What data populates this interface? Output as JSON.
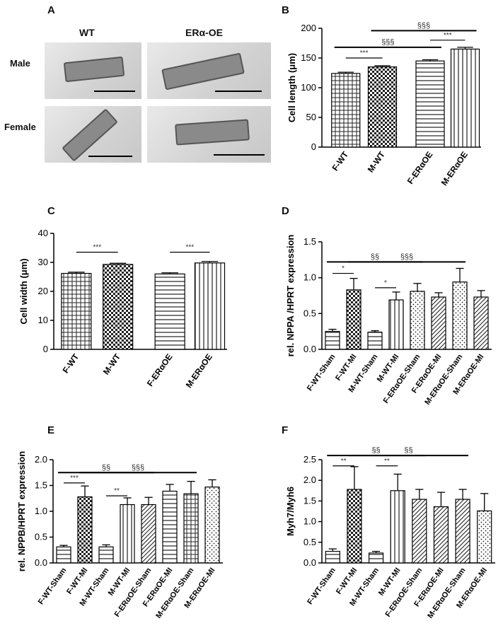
{
  "panelA": {
    "label": "A",
    "columns": [
      "WT",
      "ERα-OE"
    ],
    "rows": [
      "Male",
      "Female"
    ]
  },
  "chart_data": [
    {
      "panel": "B",
      "type": "bar",
      "categories": [
        "F-WT",
        "M-WT",
        "F-ERαOE",
        "M-ERαOE"
      ],
      "values": [
        124,
        135,
        145,
        165
      ],
      "errors": [
        2,
        2,
        2,
        3
      ],
      "patterns": [
        "grid",
        "check",
        "hstripe",
        "vstripe"
      ],
      "ylabel": "Cell length (μm)",
      "ylim": [
        0,
        200
      ],
      "yticks": [
        0,
        50,
        100,
        150,
        200
      ],
      "annotations": [
        {
          "from": 0,
          "to": 1,
          "text": "***",
          "y": 150,
          "style": "thin"
        },
        {
          "from": 0,
          "to": 2,
          "text": "§§§",
          "y": 168,
          "style": "thick"
        },
        {
          "from": 2,
          "to": 3,
          "text": "***",
          "y": 180,
          "style": "thin"
        },
        {
          "from": 1,
          "to": 3,
          "text": "§§§",
          "y": 196,
          "style": "thick"
        }
      ]
    },
    {
      "panel": "C",
      "type": "bar",
      "categories": [
        "F-WT",
        "M-WT",
        "F-ERαOE",
        "M-ERαOE"
      ],
      "values": [
        26.2,
        29.3,
        26.0,
        29.8
      ],
      "errors": [
        0.4,
        0.4,
        0.4,
        0.5
      ],
      "patterns": [
        "grid",
        "check",
        "hstripe",
        "vstripe"
      ],
      "ylabel": "Cell width (μm)",
      "ylim": [
        0,
        40
      ],
      "yticks": [
        0,
        10,
        20,
        30,
        40
      ],
      "annotations": [
        {
          "from": 0,
          "to": 1,
          "text": "***",
          "y": 33.5,
          "style": "thin"
        },
        {
          "from": 2,
          "to": 3,
          "text": "***",
          "y": 33.5,
          "style": "thin"
        }
      ]
    },
    {
      "panel": "D",
      "type": "bar",
      "categories": [
        "F-WT-Sham",
        "F-WT-MI",
        "M-WT-Sham",
        "M-WT-MI",
        "F-ERαOE-Sham",
        "F-ERαOE-MI",
        "M-ERαOE-Sham",
        "M-ERαOE-MI"
      ],
      "values": [
        0.25,
        0.83,
        0.24,
        0.69,
        0.81,
        0.73,
        0.94,
        0.73
      ],
      "errors": [
        0.03,
        0.16,
        0.02,
        0.11,
        0.11,
        0.06,
        0.19,
        0.09
      ],
      "patterns": [
        "hstripe",
        "check",
        "hstripe",
        "vstripe",
        "dots",
        "diag",
        "dots",
        "diag"
      ],
      "ylabel": "rel. NPPA /HPRT expression",
      "ylim": [
        0,
        1.5
      ],
      "yticks": [
        "0.0",
        "0.5",
        "1.0",
        "1.5"
      ],
      "annotations": [
        {
          "from": 0,
          "to": 1,
          "text": "*",
          "y": 1.06,
          "style": "thin"
        },
        {
          "from": 2,
          "to": 3,
          "text": "*",
          "y": 0.86,
          "style": "thin"
        },
        {
          "from": 0,
          "to": 4,
          "text": "§§",
          "y": 1.22,
          "style": "thick"
        },
        {
          "from": 1,
          "to": 6,
          "text": "§§§",
          "y": 1.22,
          "style": "thick"
        }
      ]
    },
    {
      "panel": "E",
      "type": "bar",
      "categories": [
        "F-WT-Sham",
        "F-WT-MI",
        "M-WT-Sham",
        "M-WT-MI",
        "F-ERαOE-Sham",
        "F-ERαOE-MI",
        "M-ERαOE-Sham",
        "M-ERαOE-MI"
      ],
      "values": [
        0.31,
        1.28,
        0.31,
        1.13,
        1.13,
        1.39,
        1.34,
        1.47
      ],
      "errors": [
        0.03,
        0.21,
        0.04,
        0.13,
        0.14,
        0.13,
        0.24,
        0.14
      ],
      "patterns": [
        "hstripe",
        "check",
        "hstripe",
        "vstripe",
        "diag",
        "hstripe",
        "grid",
        "dots"
      ],
      "ylabel": "rel. NPPB/HPRT expression",
      "ylim": [
        0,
        2.0
      ],
      "yticks": [
        "0.0",
        "0.5",
        "1.0",
        "1.5",
        "2.0"
      ],
      "annotations": [
        {
          "from": 0,
          "to": 1,
          "text": "***",
          "y": 1.55,
          "style": "thin"
        },
        {
          "from": 2,
          "to": 3,
          "text": "**",
          "y": 1.3,
          "style": "thin"
        },
        {
          "from": 0,
          "to": 4,
          "text": "§§",
          "y": 1.75,
          "style": "thick"
        },
        {
          "from": 1,
          "to": 6,
          "text": "§§§",
          "y": 1.75,
          "style": "thick"
        }
      ]
    },
    {
      "panel": "F",
      "type": "bar",
      "categories": [
        "F-WT-Sham",
        "F-WT-MI",
        "M-WT-Sham",
        "M-WT-MI",
        "F-ERαOE-Sham",
        "F-ERαOE-MI",
        "M-ERαOE-Sham",
        "M-ERαOE-MI"
      ],
      "values": [
        0.28,
        1.78,
        0.24,
        1.75,
        1.54,
        1.36,
        1.54,
        1.26
      ],
      "errors": [
        0.06,
        0.55,
        0.04,
        0.4,
        0.24,
        0.35,
        0.24,
        0.42
      ],
      "patterns": [
        "hstripe",
        "check",
        "hstripe",
        "vstripe",
        "diag",
        "diag",
        "diag",
        "dots"
      ],
      "ylabel": "Myh7/Myh6",
      "ylim": [
        0,
        2.5
      ],
      "yticks": [
        "0.0",
        "0.5",
        "1.0",
        "1.5",
        "2.0",
        "2.5"
      ],
      "annotations": [
        {
          "from": 0,
          "to": 1,
          "text": "**",
          "y": 2.35,
          "style": "thin"
        },
        {
          "from": 2,
          "to": 3,
          "text": "**",
          "y": 2.35,
          "style": "thin"
        },
        {
          "from": 0,
          "to": 4,
          "text": "§§",
          "y": 2.6,
          "style": "thick"
        },
        {
          "from": 1,
          "to": 6,
          "text": "§§",
          "y": 2.6,
          "style": "thick"
        }
      ]
    }
  ]
}
